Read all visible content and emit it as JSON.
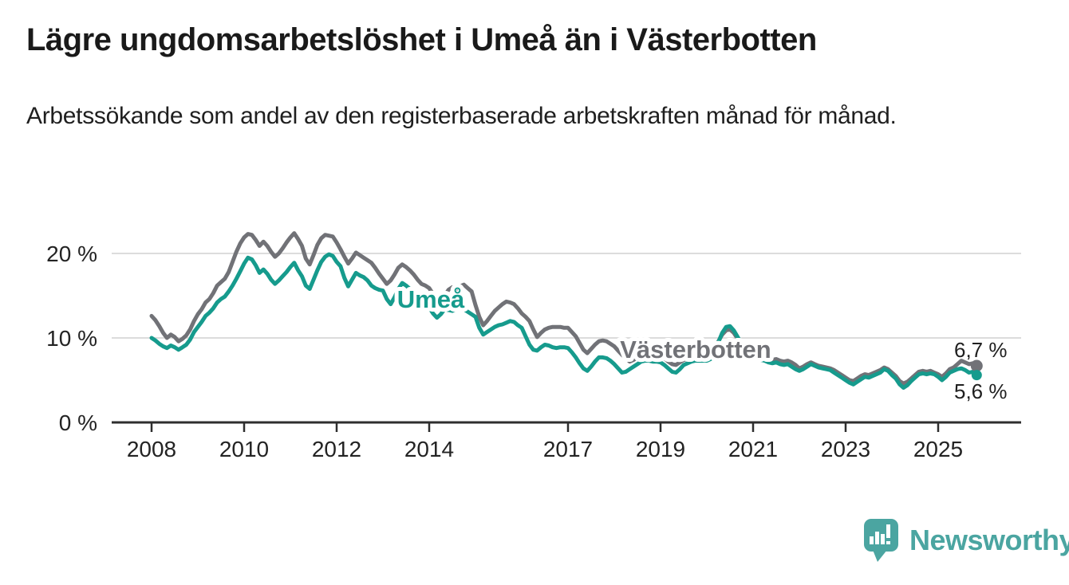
{
  "header": {
    "title": "Lägre ungdomsarbetslöshet i Umeå än i Västerbotten",
    "subtitle": "Arbetssökande som andel av den registerbaserade arbetskraften månad för månad."
  },
  "branding": {
    "logo_text": "Newsworthy",
    "logo_color": "#4ba5a1"
  },
  "colors": {
    "umea": "#169B8D",
    "vasterbotten": "#717277",
    "grid": "#dcdcdc",
    "axis": "#2e2e2e",
    "text": "#1f1f1f"
  },
  "chart_data": {
    "type": "line",
    "title": "Lägre ungdomsarbetslöshet i Umeå än i Västerbotten",
    "subtitle": "Arbetssökande som andel av den registerbaserade arbetskraften månad för månad.",
    "xlabel": "",
    "ylabel": "",
    "x_unit": "month",
    "start": "2008-01",
    "end": "2025-11",
    "ylim": [
      0,
      23
    ],
    "grid": "horizontal",
    "legend_position": "inline-labels",
    "x_ticks": [
      2008,
      2010,
      2012,
      2014,
      2017,
      2019,
      2021,
      2023,
      2025
    ],
    "y_ticks": [
      {
        "value": 0,
        "label": "0 %"
      },
      {
        "value": 10,
        "label": "10 %"
      },
      {
        "value": 20,
        "label": "20 %"
      }
    ],
    "series": [
      {
        "name": "Västerbotten",
        "inline_label": "Västerbotten",
        "end_label": "6,7 %",
        "end_value": 6.7,
        "color": "#717277",
        "values": [
          12.6,
          12.1,
          11.4,
          10.6,
          10.0,
          10.4,
          10.1,
          9.6,
          9.9,
          10.3,
          11.0,
          12.0,
          12.8,
          13.4,
          14.2,
          14.6,
          15.3,
          16.2,
          16.6,
          17.0,
          17.8,
          19.0,
          20.2,
          21.2,
          21.9,
          22.3,
          22.2,
          21.6,
          20.9,
          21.4,
          20.9,
          20.2,
          19.6,
          20.0,
          20.6,
          21.3,
          21.9,
          22.4,
          21.7,
          20.9,
          19.4,
          18.7,
          19.8,
          21.0,
          21.8,
          22.2,
          22.1,
          22.0,
          21.3,
          20.5,
          19.6,
          18.8,
          19.4,
          20.1,
          19.8,
          19.5,
          19.2,
          18.9,
          18.3,
          17.6,
          17.0,
          16.4,
          16.8,
          17.5,
          18.3,
          18.7,
          18.4,
          18.0,
          17.5,
          16.9,
          16.4,
          16.2,
          15.9,
          15.2,
          14.6,
          14.4,
          15.0,
          15.7,
          16.0,
          15.8,
          16.1,
          16.3,
          15.9,
          15.5,
          13.9,
          12.5,
          11.5,
          12.0,
          12.6,
          13.2,
          13.6,
          14.0,
          14.3,
          14.2,
          14.0,
          13.5,
          12.9,
          12.5,
          12.0,
          11.0,
          10.1,
          10.6,
          11.0,
          11.2,
          11.3,
          11.3,
          11.3,
          11.2,
          11.2,
          10.7,
          10.2,
          9.4,
          8.6,
          8.2,
          8.7,
          9.2,
          9.6,
          9.7,
          9.6,
          9.3,
          9.0,
          8.5,
          8.0,
          7.6,
          7.2,
          7.4,
          7.7,
          8.0,
          8.2,
          8.2,
          8.1,
          8.0,
          7.8,
          7.6,
          7.2,
          6.9,
          6.8,
          7.1,
          7.4,
          7.5,
          7.6,
          7.7,
          7.7,
          7.7,
          7.8,
          7.9,
          8.5,
          9.6,
          10.4,
          10.9,
          11.0,
          10.6,
          9.9,
          9.2,
          8.6,
          8.2,
          8.0,
          7.8,
          7.7,
          7.7,
          7.5,
          7.4,
          7.5,
          7.3,
          7.2,
          7.3,
          7.1,
          6.8,
          6.4,
          6.6,
          6.9,
          7.1,
          6.9,
          6.7,
          6.6,
          6.5,
          6.4,
          6.2,
          5.9,
          5.6,
          5.3,
          5.0,
          4.9,
          5.2,
          5.5,
          5.7,
          5.6,
          5.8,
          6.0,
          6.2,
          6.5,
          6.3,
          5.9,
          5.5,
          4.9,
          4.6,
          4.8,
          5.2,
          5.6,
          6.0,
          6.1,
          6.0,
          6.1,
          5.9,
          5.7,
          5.4,
          5.8,
          6.3,
          6.5,
          6.9,
          7.3,
          7.1,
          6.9,
          7.0,
          6.7
        ]
      },
      {
        "name": "Umeå",
        "inline_label": "Umeå",
        "end_label": "5,6 %",
        "end_value": 5.6,
        "color": "#169B8D",
        "values": [
          10.0,
          9.7,
          9.3,
          9.0,
          8.8,
          9.1,
          8.9,
          8.6,
          8.9,
          9.2,
          9.8,
          10.7,
          11.3,
          11.9,
          12.6,
          13.0,
          13.5,
          14.2,
          14.6,
          14.9,
          15.5,
          16.2,
          17.0,
          17.9,
          18.8,
          19.5,
          19.3,
          18.6,
          17.7,
          18.1,
          17.6,
          16.9,
          16.4,
          16.8,
          17.3,
          17.8,
          18.4,
          18.9,
          18.0,
          17.3,
          16.2,
          15.8,
          16.9,
          18.0,
          19.0,
          19.6,
          19.9,
          19.7,
          19.0,
          18.5,
          17.1,
          16.1,
          16.9,
          17.7,
          17.4,
          17.2,
          16.8,
          16.2,
          15.9,
          15.7,
          15.6,
          14.6,
          14.0,
          14.8,
          15.8,
          16.5,
          16.2,
          15.8,
          15.3,
          14.8,
          14.2,
          13.7,
          13.6,
          12.9,
          12.4,
          12.8,
          13.4,
          13.3,
          13.2,
          13.4,
          13.5,
          13.4,
          13.1,
          12.8,
          12.5,
          11.2,
          10.4,
          10.7,
          11.0,
          11.3,
          11.5,
          11.6,
          11.8,
          12.0,
          11.9,
          11.5,
          11.2,
          10.2,
          9.2,
          8.6,
          8.5,
          8.9,
          9.2,
          9.1,
          8.9,
          8.8,
          8.9,
          8.9,
          8.8,
          8.3,
          7.7,
          7.0,
          6.4,
          6.1,
          6.6,
          7.2,
          7.7,
          7.7,
          7.6,
          7.3,
          6.9,
          6.4,
          5.9,
          6.0,
          6.3,
          6.6,
          6.9,
          7.2,
          7.3,
          7.3,
          7.2,
          7.2,
          7.1,
          6.8,
          6.4,
          6.0,
          5.9,
          6.3,
          6.8,
          7.0,
          7.2,
          7.3,
          7.3,
          7.3,
          7.3,
          7.5,
          8.2,
          9.5,
          10.6,
          11.3,
          11.4,
          10.9,
          10.1,
          9.3,
          8.6,
          8.1,
          7.8,
          7.6,
          7.4,
          7.3,
          7.1,
          7.0,
          7.1,
          6.9,
          6.8,
          6.9,
          6.6,
          6.3,
          6.1,
          6.3,
          6.6,
          6.9,
          6.7,
          6.5,
          6.4,
          6.3,
          6.2,
          5.9,
          5.6,
          5.3,
          5.0,
          4.7,
          4.5,
          4.8,
          5.1,
          5.4,
          5.3,
          5.5,
          5.7,
          5.9,
          6.3,
          6.1,
          5.6,
          5.2,
          4.5,
          4.1,
          4.4,
          4.9,
          5.3,
          5.7,
          5.8,
          5.7,
          5.8,
          5.7,
          5.4,
          5.0,
          5.4,
          5.9,
          6.1,
          6.3,
          6.4,
          6.2,
          5.9,
          6.0,
          5.6
        ]
      }
    ]
  }
}
